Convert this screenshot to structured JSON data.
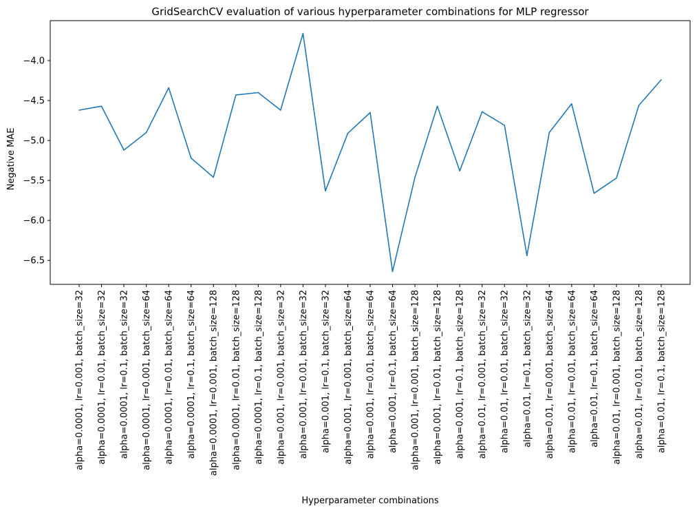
{
  "chart_data": {
    "type": "line",
    "title": "GridSearchCV evaluation of various hyperparameter combinations for MLP regressor",
    "xlabel": "Hyperparameter combinations",
    "ylabel": "Negative MAE",
    "ylim": [
      -6.8,
      -3.5
    ],
    "yticks": [
      -4.0,
      -4.5,
      -5.0,
      -5.5,
      -6.0,
      -6.5
    ],
    "ytick_labels": [
      "−4.0",
      "−4.5",
      "−5.0",
      "−5.5",
      "−6.0",
      "−6.5"
    ],
    "grid": false,
    "categories": [
      "alpha=0.0001, lr=0.001, batch_size=32",
      "alpha=0.0001, lr=0.01, batch_size=32",
      "alpha=0.0001, lr=0.1, batch_size=32",
      "alpha=0.0001, lr=0.001, batch_size=64",
      "alpha=0.0001, lr=0.01, batch_size=64",
      "alpha=0.0001, lr=0.1, batch_size=64",
      "alpha=0.0001, lr=0.001, batch_size=128",
      "alpha=0.0001, lr=0.01, batch_size=128",
      "alpha=0.0001, lr=0.1, batch_size=128",
      "alpha=0.001, lr=0.001, batch_size=32",
      "alpha=0.001, lr=0.01, batch_size=32",
      "alpha=0.001, lr=0.1, batch_size=32",
      "alpha=0.001, lr=0.001, batch_size=64",
      "alpha=0.001, lr=0.01, batch_size=64",
      "alpha=0.001, lr=0.1, batch_size=64",
      "alpha=0.001, lr=0.001, batch_size=128",
      "alpha=0.001, lr=0.01, batch_size=128",
      "alpha=0.001, lr=0.1, batch_size=128",
      "alpha=0.01, lr=0.001, batch_size=32",
      "alpha=0.01, lr=0.01, batch_size=32",
      "alpha=0.01, lr=0.1, batch_size=32",
      "alpha=0.01, lr=0.001, batch_size=64",
      "alpha=0.01, lr=0.01, batch_size=64",
      "alpha=0.01, lr=0.1, batch_size=64",
      "alpha=0.01, lr=0.001, batch_size=128",
      "alpha=0.01, lr=0.01, batch_size=128",
      "alpha=0.01, lr=0.1, batch_size=128"
    ],
    "series": [
      {
        "values": [
          -4.62,
          -4.57,
          -5.12,
          -4.9,
          -4.34,
          -5.22,
          -5.46,
          -4.43,
          -4.4,
          -4.62,
          -3.66,
          -5.63,
          -4.91,
          -4.65,
          -6.64,
          -5.46,
          -4.57,
          -5.38,
          -4.64,
          -4.81,
          -6.44,
          -4.9,
          -4.54,
          -5.66,
          -5.47,
          -4.56,
          -4.24
        ],
        "color": "#1f77b4"
      }
    ]
  }
}
